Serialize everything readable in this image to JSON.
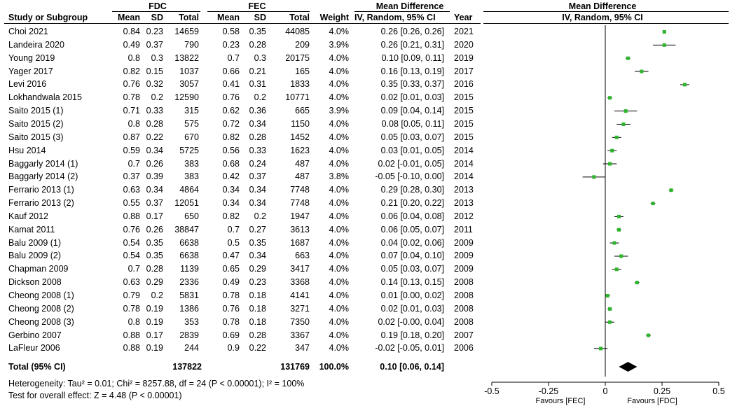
{
  "header": {
    "group1": "FDC",
    "group2": "FEC",
    "col_study": "Study or Subgroup",
    "col_mean": "Mean",
    "col_sd": "SD",
    "col_total": "Total",
    "col_weight": "Weight",
    "md_title": "Mean Difference",
    "md_sub": "IV, Random, 95% CI",
    "col_year": "Year",
    "plot_title": "Mean Difference",
    "plot_sub": "IV, Random, 95% CI"
  },
  "rows": [
    {
      "study": "Choi 2021",
      "m1": "0.84",
      "sd1": "0.23",
      "n1": "14659",
      "m2": "0.58",
      "sd2": "0.35",
      "n2": "44085",
      "w": "4.0%",
      "ci": "0.26 [0.26, 0.26]",
      "year": "2021"
    },
    {
      "study": "Landeira 2020",
      "m1": "0.49",
      "sd1": "0.37",
      "n1": "790",
      "m2": "0.23",
      "sd2": "0.28",
      "n2": "209",
      "w": "3.9%",
      "ci": "0.26 [0.21, 0.31]",
      "year": "2020"
    },
    {
      "study": "Young 2019",
      "m1": "0.8",
      "sd1": "0.3",
      "n1": "13822",
      "m2": "0.7",
      "sd2": "0.3",
      "n2": "20175",
      "w": "4.0%",
      "ci": "0.10 [0.09, 0.11]",
      "year": "2019"
    },
    {
      "study": "Yager 2017",
      "m1": "0.82",
      "sd1": "0.15",
      "n1": "1037",
      "m2": "0.66",
      "sd2": "0.21",
      "n2": "165",
      "w": "4.0%",
      "ci": "0.16 [0.13, 0.19]",
      "year": "2017"
    },
    {
      "study": "Levi 2016",
      "m1": "0.76",
      "sd1": "0.32",
      "n1": "3057",
      "m2": "0.41",
      "sd2": "0.31",
      "n2": "1833",
      "w": "4.0%",
      "ci": "0.35 [0.33, 0.37]",
      "year": "2016"
    },
    {
      "study": "Lokhandwala 2015",
      "m1": "0.78",
      "sd1": "0.2",
      "n1": "12590",
      "m2": "0.76",
      "sd2": "0.2",
      "n2": "10771",
      "w": "4.0%",
      "ci": "0.02 [0.01, 0.03]",
      "year": "2015"
    },
    {
      "study": "Saito 2015 (1)",
      "m1": "0.71",
      "sd1": "0.33",
      "n1": "315",
      "m2": "0.62",
      "sd2": "0.36",
      "n2": "665",
      "w": "3.9%",
      "ci": "0.09 [0.04, 0.14]",
      "year": "2015"
    },
    {
      "study": "Saito 2015 (2)",
      "m1": "0.8",
      "sd1": "0.28",
      "n1": "575",
      "m2": "0.72",
      "sd2": "0.34",
      "n2": "1150",
      "w": "4.0%",
      "ci": "0.08 [0.05, 0.11]",
      "year": "2015"
    },
    {
      "study": "Saito 2015 (3)",
      "m1": "0.87",
      "sd1": "0.22",
      "n1": "670",
      "m2": "0.82",
      "sd2": "0.28",
      "n2": "1452",
      "w": "4.0%",
      "ci": "0.05 [0.03, 0.07]",
      "year": "2015"
    },
    {
      "study": "Hsu 2014",
      "m1": "0.59",
      "sd1": "0.34",
      "n1": "5725",
      "m2": "0.56",
      "sd2": "0.33",
      "n2": "1623",
      "w": "4.0%",
      "ci": "0.03 [0.01, 0.05]",
      "year": "2014"
    },
    {
      "study": "Baggarly 2014 (1)",
      "m1": "0.7",
      "sd1": "0.26",
      "n1": "383",
      "m2": "0.68",
      "sd2": "0.24",
      "n2": "487",
      "w": "4.0%",
      "ci": "0.02 [-0.01, 0.05]",
      "year": "2014"
    },
    {
      "study": "Baggarly 2014 (2)",
      "m1": "0.37",
      "sd1": "0.39",
      "n1": "383",
      "m2": "0.42",
      "sd2": "0.37",
      "n2": "487",
      "w": "3.8%",
      "ci": "-0.05 [-0.10, 0.00]",
      "year": "2014"
    },
    {
      "study": "Ferrario 2013 (1)",
      "m1": "0.63",
      "sd1": "0.34",
      "n1": "4864",
      "m2": "0.34",
      "sd2": "0.34",
      "n2": "7748",
      "w": "4.0%",
      "ci": "0.29 [0.28, 0.30]",
      "year": "2013"
    },
    {
      "study": "Ferrario 2013 (2)",
      "m1": "0.55",
      "sd1": "0.37",
      "n1": "12051",
      "m2": "0.34",
      "sd2": "0.34",
      "n2": "7748",
      "w": "4.0%",
      "ci": "0.21 [0.20, 0.22]",
      "year": "2013"
    },
    {
      "study": "Kauf 2012",
      "m1": "0.88",
      "sd1": "0.17",
      "n1": "650",
      "m2": "0.82",
      "sd2": "0.2",
      "n2": "1947",
      "w": "4.0%",
      "ci": "0.06 [0.04, 0.08]",
      "year": "2012"
    },
    {
      "study": "Kamat 2011",
      "m1": "0.76",
      "sd1": "0.26",
      "n1": "38847",
      "m2": "0.7",
      "sd2": "0.27",
      "n2": "3613",
      "w": "4.0%",
      "ci": "0.06 [0.05, 0.07]",
      "year": "2011"
    },
    {
      "study": "Balu 2009 (1)",
      "m1": "0.54",
      "sd1": "0.35",
      "n1": "6638",
      "m2": "0.5",
      "sd2": "0.35",
      "n2": "1687",
      "w": "4.0%",
      "ci": "0.04 [0.02, 0.06]",
      "year": "2009"
    },
    {
      "study": "Balu 2009 (2)",
      "m1": "0.54",
      "sd1": "0.35",
      "n1": "6638",
      "m2": "0.47",
      "sd2": "0.34",
      "n2": "663",
      "w": "4.0%",
      "ci": "0.07 [0.04, 0.10]",
      "year": "2009"
    },
    {
      "study": "Chapman 2009",
      "m1": "0.7",
      "sd1": "0.28",
      "n1": "1139",
      "m2": "0.65",
      "sd2": "0.29",
      "n2": "3417",
      "w": "4.0%",
      "ci": "0.05 [0.03, 0.07]",
      "year": "2009"
    },
    {
      "study": "Dickson 2008",
      "m1": "0.63",
      "sd1": "0.29",
      "n1": "2336",
      "m2": "0.49",
      "sd2": "0.23",
      "n2": "3368",
      "w": "4.0%",
      "ci": "0.14 [0.13, 0.15]",
      "year": "2008"
    },
    {
      "study": "Cheong 2008 (1)",
      "m1": "0.79",
      "sd1": "0.2",
      "n1": "5831",
      "m2": "0.78",
      "sd2": "0.18",
      "n2": "4141",
      "w": "4.0%",
      "ci": "0.01 [0.00, 0.02]",
      "year": "2008"
    },
    {
      "study": "Cheong 2008 (2)",
      "m1": "0.78",
      "sd1": "0.19",
      "n1": "1386",
      "m2": "0.76",
      "sd2": "0.18",
      "n2": "3271",
      "w": "4.0%",
      "ci": "0.02 [0.01, 0.03]",
      "year": "2008"
    },
    {
      "study": "Cheong 2008 (3)",
      "m1": "0.8",
      "sd1": "0.19",
      "n1": "353",
      "m2": "0.78",
      "sd2": "0.18",
      "n2": "7350",
      "w": "4.0%",
      "ci": "0.02 [-0.00, 0.04]",
      "year": "2008"
    },
    {
      "study": "Gerbino 2007",
      "m1": "0.88",
      "sd1": "0.17",
      "n1": "2839",
      "m2": "0.69",
      "sd2": "0.28",
      "n2": "3367",
      "w": "4.0%",
      "ci": "0.19 [0.18, 0.20]",
      "year": "2007"
    },
    {
      "study": "LaFleur 2006",
      "m1": "0.88",
      "sd1": "0.19",
      "n1": "244",
      "m2": "0.9",
      "sd2": "0.22",
      "n2": "347",
      "w": "4.0%",
      "ci": "-0.02 [-0.05, 0.01]",
      "year": "2006"
    }
  ],
  "total": {
    "label": "Total (95% CI)",
    "n1": "137822",
    "n2": "131769",
    "w": "100.0%",
    "ci": "0.10 [0.06, 0.14]"
  },
  "footer": {
    "heterogeneity": "Heterogeneity: Tau² = 0.01; Chi² = 8257.88, df = 24 (P < 0.00001); I² = 100%",
    "overall": "Test for overall effect: Z = 4.48 (P < 0.00001)"
  },
  "axis": {
    "favours_left": "Favours [FEC]",
    "favours_right": "Favours [FDC]"
  },
  "colors": {
    "point": "#2db52d",
    "diamond": "#000000",
    "line": "#000000"
  },
  "chart_data": {
    "type": "scatter",
    "title": "Mean Difference",
    "subtitle": "IV, Random, 95% CI",
    "xlim": [
      -0.5,
      0.5
    ],
    "xticks": [
      -0.5,
      -0.25,
      0,
      0.25,
      0.5
    ],
    "xtick_labels": [
      "-0.5",
      "-0.25",
      "0",
      "0.25",
      "0.5"
    ],
    "estimates": [
      0.26,
      0.26,
      0.1,
      0.16,
      0.35,
      0.02,
      0.09,
      0.08,
      0.05,
      0.03,
      0.02,
      -0.05,
      0.29,
      0.21,
      0.06,
      0.06,
      0.04,
      0.07,
      0.05,
      0.14,
      0.01,
      0.02,
      0.02,
      0.19,
      -0.02
    ],
    "lower": [
      0.26,
      0.21,
      0.09,
      0.13,
      0.33,
      0.01,
      0.04,
      0.05,
      0.03,
      0.01,
      -0.01,
      -0.1,
      0.28,
      0.2,
      0.04,
      0.05,
      0.02,
      0.04,
      0.03,
      0.13,
      0.0,
      0.01,
      -0.0,
      0.18,
      -0.05
    ],
    "upper": [
      0.26,
      0.31,
      0.11,
      0.19,
      0.37,
      0.03,
      0.14,
      0.11,
      0.07,
      0.05,
      0.05,
      0.0,
      0.3,
      0.22,
      0.08,
      0.07,
      0.06,
      0.1,
      0.07,
      0.15,
      0.02,
      0.03,
      0.04,
      0.2,
      0.01
    ],
    "pooled": {
      "estimate": 0.1,
      "lower": 0.06,
      "upper": 0.14
    }
  }
}
